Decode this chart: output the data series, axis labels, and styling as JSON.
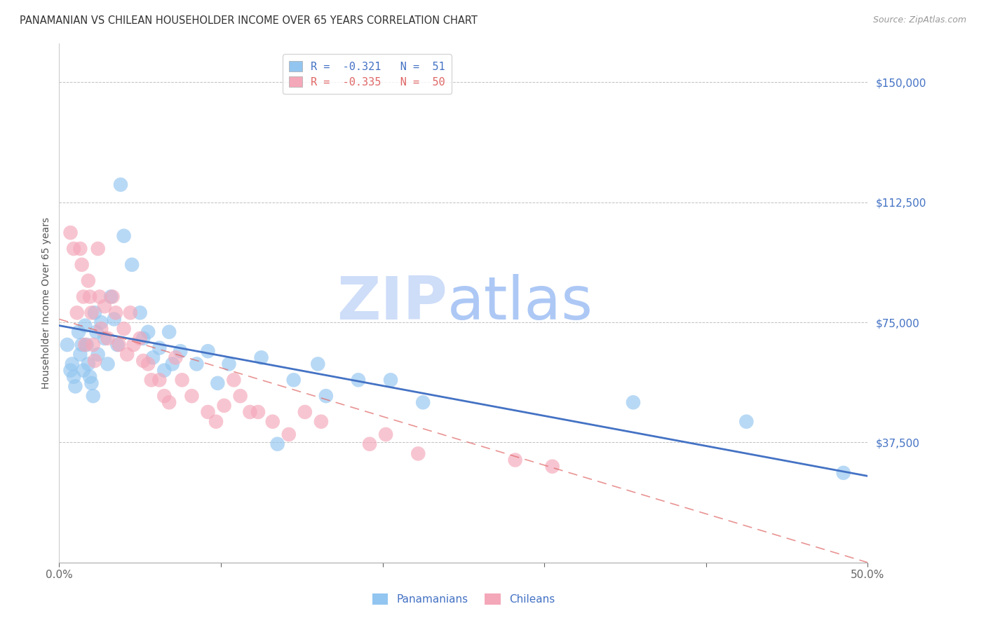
{
  "title": "PANAMANIAN VS CHILEAN HOUSEHOLDER INCOME OVER 65 YEARS CORRELATION CHART",
  "source": "Source: ZipAtlas.com",
  "ylabel": "Householder Income Over 65 years",
  "xlim": [
    0.0,
    0.5
  ],
  "ylim": [
    0,
    162000
  ],
  "yticks": [
    37500,
    75000,
    112500,
    150000
  ],
  "ytick_labels": [
    "$37,500",
    "$75,000",
    "$112,500",
    "$150,000"
  ],
  "xticks": [
    0.0,
    0.1,
    0.2,
    0.3,
    0.4,
    0.5
  ],
  "xtick_labels": [
    "0.0%",
    "",
    "",
    "",
    "",
    "50.0%"
  ],
  "blue_color": "#92c5f0",
  "pink_color": "#f4a7b9",
  "blue_line_color": "#4472c4",
  "pink_line_color": "#e06666",
  "R_blue": -0.321,
  "N_blue": 51,
  "R_pink": -0.335,
  "N_pink": 50,
  "watermark_zip": "ZIP",
  "watermark_atlas": "atlas",
  "watermark_color_zip": "#c9daf8",
  "watermark_color_atlas": "#a4c2f4",
  "legend_label_blue": "Panamanians",
  "legend_label_pink": "Chileans",
  "blue_scatter_x": [
    0.005,
    0.007,
    0.008,
    0.009,
    0.01,
    0.012,
    0.013,
    0.014,
    0.015,
    0.016,
    0.017,
    0.018,
    0.019,
    0.02,
    0.021,
    0.022,
    0.023,
    0.024,
    0.026,
    0.028,
    0.03,
    0.032,
    0.034,
    0.036,
    0.038,
    0.04,
    0.045,
    0.05,
    0.052,
    0.055,
    0.058,
    0.062,
    0.065,
    0.068,
    0.07,
    0.075,
    0.085,
    0.092,
    0.098,
    0.105,
    0.125,
    0.135,
    0.145,
    0.16,
    0.165,
    0.185,
    0.205,
    0.225,
    0.355,
    0.425,
    0.485
  ],
  "blue_scatter_y": [
    68000,
    60000,
    62000,
    58000,
    55000,
    72000,
    65000,
    68000,
    60000,
    74000,
    68000,
    62000,
    58000,
    56000,
    52000,
    78000,
    72000,
    65000,
    75000,
    70000,
    62000,
    83000,
    76000,
    68000,
    118000,
    102000,
    93000,
    78000,
    70000,
    72000,
    64000,
    67000,
    60000,
    72000,
    62000,
    66000,
    62000,
    66000,
    56000,
    62000,
    64000,
    37000,
    57000,
    62000,
    52000,
    57000,
    57000,
    50000,
    50000,
    44000,
    28000
  ],
  "pink_scatter_x": [
    0.007,
    0.009,
    0.011,
    0.013,
    0.014,
    0.015,
    0.016,
    0.018,
    0.019,
    0.02,
    0.021,
    0.022,
    0.024,
    0.025,
    0.026,
    0.028,
    0.03,
    0.033,
    0.035,
    0.037,
    0.04,
    0.042,
    0.044,
    0.046,
    0.05,
    0.052,
    0.055,
    0.057,
    0.062,
    0.065,
    0.068,
    0.072,
    0.076,
    0.082,
    0.092,
    0.097,
    0.102,
    0.108,
    0.112,
    0.118,
    0.123,
    0.132,
    0.142,
    0.152,
    0.162,
    0.192,
    0.202,
    0.222,
    0.282,
    0.305
  ],
  "pink_scatter_y": [
    103000,
    98000,
    78000,
    98000,
    93000,
    83000,
    68000,
    88000,
    83000,
    78000,
    68000,
    63000,
    98000,
    83000,
    73000,
    80000,
    70000,
    83000,
    78000,
    68000,
    73000,
    65000,
    78000,
    68000,
    70000,
    63000,
    62000,
    57000,
    57000,
    52000,
    50000,
    64000,
    57000,
    52000,
    47000,
    44000,
    49000,
    57000,
    52000,
    47000,
    47000,
    44000,
    40000,
    47000,
    44000,
    37000,
    40000,
    34000,
    32000,
    30000
  ],
  "blue_line_x": [
    0.0,
    0.5
  ],
  "blue_line_y": [
    74000,
    27000
  ],
  "pink_line_x": [
    0.0,
    0.5
  ],
  "pink_line_y": [
    76000,
    0
  ],
  "title_fontsize": 10.5,
  "source_fontsize": 9,
  "ylabel_fontsize": 10,
  "tick_color": "#4472c4",
  "background_color": "#ffffff",
  "grid_color": "#c0c0c0"
}
